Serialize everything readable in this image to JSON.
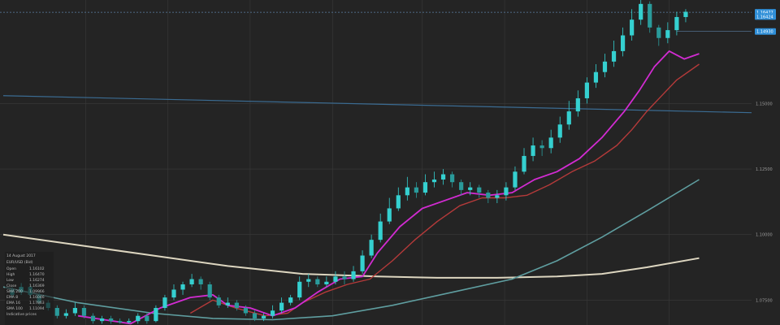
{
  "chart_data": {
    "type": "candlestick",
    "title": "",
    "xlabel": "",
    "ylabel": "",
    "ylim": [
      1.0655,
      1.1895
    ],
    "y_ticks": [
      "1.15000",
      "1.12500",
      "1.10000",
      "1.07500"
    ],
    "y_tick_values": [
      1.15,
      1.125,
      1.1,
      1.075
    ],
    "price_tags": [
      {
        "label": "1.16477",
        "value": 1.1848,
        "color": "#2f8fd8"
      },
      {
        "label": "1.16424",
        "value": 1.1832,
        "color": "#2f8fd8"
      },
      {
        "label": "1.14930",
        "value": 1.1775,
        "color": "#2f8fd8"
      }
    ],
    "trendline": {
      "start": [
        0,
        1.153
      ],
      "end": [
        1,
        1.1465
      ]
    },
    "info_panel": {
      "date": "14 August 2017",
      "instrument": "EUR/USD (Bid)",
      "rows": [
        {
          "label": "Open",
          "value": "1.16102"
        },
        {
          "label": "High",
          "value": "1.16470"
        },
        {
          "label": "Low",
          "value": "1.16274"
        },
        {
          "label": "Close",
          "value": "1.16369"
        },
        {
          "label": "SMA 200",
          "value": "1.09966"
        },
        {
          "label": "EMA 8",
          "value": "1.16046"
        },
        {
          "label": "EMA 16",
          "value": "1.17863"
        },
        {
          "label": "SMA 100",
          "value": "1.11094"
        },
        {
          "label": "Indicative prices",
          "value": ""
        }
      ]
    },
    "series": [
      {
        "name": "EMA 8",
        "color": "#d22bd2",
        "width": 1.8,
        "values": [
          [
            0.1,
            1.069
          ],
          [
            0.17,
            1.066
          ],
          [
            0.21,
            1.072
          ],
          [
            0.25,
            1.076
          ],
          [
            0.28,
            1.077
          ],
          [
            0.3,
            1.073
          ],
          [
            0.33,
            1.072
          ],
          [
            0.36,
            1.069
          ],
          [
            0.39,
            1.072
          ],
          [
            0.42,
            1.078
          ],
          [
            0.45,
            1.083
          ],
          [
            0.48,
            1.084
          ],
          [
            0.5,
            1.093
          ],
          [
            0.53,
            1.103
          ],
          [
            0.56,
            1.11
          ],
          [
            0.59,
            1.113
          ],
          [
            0.62,
            1.116
          ],
          [
            0.65,
            1.115
          ],
          [
            0.68,
            1.116
          ],
          [
            0.71,
            1.121
          ],
          [
            0.74,
            1.124
          ],
          [
            0.77,
            1.129
          ],
          [
            0.8,
            1.137
          ],
          [
            0.83,
            1.147
          ],
          [
            0.85,
            1.155
          ],
          [
            0.87,
            1.164
          ],
          [
            0.89,
            1.17
          ],
          [
            0.91,
            1.167
          ],
          [
            0.93,
            1.169
          ]
        ]
      },
      {
        "name": "EMA 16",
        "color": "#b53a3a",
        "width": 1.4,
        "values": [
          [
            0.25,
            1.07
          ],
          [
            0.28,
            1.075
          ],
          [
            0.31,
            1.072
          ],
          [
            0.35,
            1.069
          ],
          [
            0.38,
            1.07
          ],
          [
            0.4,
            1.074
          ],
          [
            0.43,
            1.078
          ],
          [
            0.46,
            1.081
          ],
          [
            0.49,
            1.083
          ],
          [
            0.52,
            1.09
          ],
          [
            0.55,
            1.098
          ],
          [
            0.58,
            1.105
          ],
          [
            0.61,
            1.111
          ],
          [
            0.64,
            1.114
          ],
          [
            0.67,
            1.114
          ],
          [
            0.7,
            1.115
          ],
          [
            0.73,
            1.119
          ],
          [
            0.76,
            1.124
          ],
          [
            0.79,
            1.128
          ],
          [
            0.82,
            1.134
          ],
          [
            0.84,
            1.14
          ],
          [
            0.86,
            1.147
          ],
          [
            0.88,
            1.153
          ],
          [
            0.9,
            1.159
          ],
          [
            0.93,
            1.165
          ]
        ]
      },
      {
        "name": "SMA 100",
        "color": "#5f9ea0",
        "width": 1.6,
        "values": [
          [
            0.0,
            1.08
          ],
          [
            0.1,
            1.074
          ],
          [
            0.2,
            1.07
          ],
          [
            0.28,
            1.068
          ],
          [
            0.36,
            1.0675
          ],
          [
            0.44,
            1.069
          ],
          [
            0.52,
            1.073
          ],
          [
            0.6,
            1.078
          ],
          [
            0.68,
            1.083
          ],
          [
            0.74,
            1.09
          ],
          [
            0.8,
            1.099
          ],
          [
            0.86,
            1.109
          ],
          [
            0.93,
            1.121
          ]
        ]
      },
      {
        "name": "SMA 200",
        "color": "#ddd6c0",
        "width": 2.0,
        "values": [
          [
            0.0,
            1.1
          ],
          [
            0.1,
            1.096
          ],
          [
            0.2,
            1.092
          ],
          [
            0.3,
            1.088
          ],
          [
            0.4,
            1.085
          ],
          [
            0.5,
            1.084
          ],
          [
            0.58,
            1.0835
          ],
          [
            0.66,
            1.0835
          ],
          [
            0.74,
            1.084
          ],
          [
            0.8,
            1.085
          ],
          [
            0.86,
            1.0875
          ],
          [
            0.93,
            1.091
          ]
        ]
      }
    ],
    "candles": [
      [
        0.012,
        1.079,
        1.077,
        1.08,
        1.076
      ],
      [
        0.024,
        1.078,
        1.08,
        1.0815,
        1.077
      ],
      [
        0.036,
        1.08,
        1.077,
        1.081,
        1.076
      ],
      [
        0.048,
        1.077,
        1.074,
        1.0785,
        1.073
      ],
      [
        0.06,
        1.074,
        1.072,
        1.075,
        1.071
      ],
      [
        0.072,
        1.072,
        1.069,
        1.073,
        1.068
      ],
      [
        0.084,
        1.069,
        1.07,
        1.0715,
        1.068
      ],
      [
        0.096,
        1.07,
        1.072,
        1.074,
        1.069
      ],
      [
        0.108,
        1.072,
        1.069,
        1.073,
        1.068
      ],
      [
        0.12,
        1.069,
        1.067,
        1.07,
        1.066
      ],
      [
        0.132,
        1.067,
        1.068,
        1.069,
        1.066
      ],
      [
        0.144,
        1.068,
        1.067,
        1.069,
        1.066
      ],
      [
        0.156,
        1.067,
        1.0665,
        1.068,
        1.066
      ],
      [
        0.168,
        1.0665,
        1.067,
        1.068,
        1.066
      ],
      [
        0.18,
        1.067,
        1.069,
        1.07,
        1.066
      ],
      [
        0.192,
        1.069,
        1.067,
        1.07,
        1.066
      ],
      [
        0.204,
        1.067,
        1.072,
        1.073,
        1.0665
      ],
      [
        0.216,
        1.072,
        1.076,
        1.077,
        1.071
      ],
      [
        0.228,
        1.076,
        1.079,
        1.081,
        1.075
      ],
      [
        0.24,
        1.079,
        1.081,
        1.082,
        1.077
      ],
      [
        0.252,
        1.081,
        1.083,
        1.085,
        1.08
      ],
      [
        0.264,
        1.083,
        1.081,
        1.084,
        1.079
      ],
      [
        0.276,
        1.081,
        1.076,
        1.082,
        1.075
      ],
      [
        0.288,
        1.076,
        1.073,
        1.077,
        1.072
      ],
      [
        0.3,
        1.073,
        1.074,
        1.076,
        1.072
      ],
      [
        0.312,
        1.074,
        1.072,
        1.075,
        1.071
      ],
      [
        0.324,
        1.072,
        1.07,
        1.073,
        1.069
      ],
      [
        0.336,
        1.07,
        1.068,
        1.071,
        1.067
      ],
      [
        0.348,
        1.068,
        1.069,
        1.07,
        1.067
      ],
      [
        0.36,
        1.069,
        1.071,
        1.073,
        1.068
      ],
      [
        0.372,
        1.071,
        1.074,
        1.076,
        1.07
      ],
      [
        0.384,
        1.074,
        1.076,
        1.077,
        1.073
      ],
      [
        0.396,
        1.076,
        1.082,
        1.084,
        1.075
      ],
      [
        0.408,
        1.082,
        1.083,
        1.085,
        1.08
      ],
      [
        0.42,
        1.083,
        1.081,
        1.084,
        1.08
      ],
      [
        0.432,
        1.081,
        1.082,
        1.084,
        1.08
      ],
      [
        0.444,
        1.082,
        1.084,
        1.086,
        1.081
      ],
      [
        0.456,
        1.084,
        1.083,
        1.086,
        1.081
      ],
      [
        0.468,
        1.083,
        1.086,
        1.088,
        1.082
      ],
      [
        0.48,
        1.086,
        1.092,
        1.094,
        1.085
      ],
      [
        0.492,
        1.092,
        1.098,
        1.1,
        1.091
      ],
      [
        0.504,
        1.098,
        1.105,
        1.108,
        1.097
      ],
      [
        0.516,
        1.105,
        1.11,
        1.114,
        1.104
      ],
      [
        0.528,
        1.11,
        1.115,
        1.118,
        1.109
      ],
      [
        0.54,
        1.115,
        1.118,
        1.122,
        1.113
      ],
      [
        0.552,
        1.118,
        1.116,
        1.12,
        1.114
      ],
      [
        0.564,
        1.116,
        1.12,
        1.123,
        1.115
      ],
      [
        0.576,
        1.12,
        1.121,
        1.124,
        1.118
      ],
      [
        0.588,
        1.121,
        1.123,
        1.125,
        1.119
      ],
      [
        0.6,
        1.123,
        1.12,
        1.124,
        1.118
      ],
      [
        0.612,
        1.12,
        1.117,
        1.121,
        1.115
      ],
      [
        0.624,
        1.117,
        1.118,
        1.12,
        1.115
      ],
      [
        0.636,
        1.118,
        1.116,
        1.119,
        1.114
      ],
      [
        0.648,
        1.116,
        1.114,
        1.117,
        1.112
      ],
      [
        0.66,
        1.114,
        1.115,
        1.117,
        1.112
      ],
      [
        0.672,
        1.115,
        1.118,
        1.12,
        1.113
      ],
      [
        0.684,
        1.118,
        1.124,
        1.126,
        1.117
      ],
      [
        0.696,
        1.124,
        1.13,
        1.133,
        1.123
      ],
      [
        0.708,
        1.13,
        1.134,
        1.137,
        1.128
      ],
      [
        0.72,
        1.134,
        1.133,
        1.136,
        1.13
      ],
      [
        0.732,
        1.133,
        1.137,
        1.14,
        1.131
      ],
      [
        0.744,
        1.137,
        1.142,
        1.145,
        1.135
      ],
      [
        0.756,
        1.142,
        1.147,
        1.151,
        1.14
      ],
      [
        0.768,
        1.147,
        1.152,
        1.155,
        1.145
      ],
      [
        0.78,
        1.152,
        1.158,
        1.16,
        1.15
      ],
      [
        0.792,
        1.158,
        1.162,
        1.165,
        1.156
      ],
      [
        0.804,
        1.162,
        1.166,
        1.169,
        1.16
      ],
      [
        0.816,
        1.166,
        1.17,
        1.174,
        1.164
      ],
      [
        0.828,
        1.17,
        1.176,
        1.179,
        1.168
      ],
      [
        0.84,
        1.176,
        1.182,
        1.186,
        1.174
      ],
      [
        0.852,
        1.182,
        1.188,
        1.1895,
        1.18
      ],
      [
        0.864,
        1.188,
        1.179,
        1.189,
        1.177
      ],
      [
        0.876,
        1.179,
        1.175,
        1.18,
        1.172
      ],
      [
        0.888,
        1.175,
        1.178,
        1.181,
        1.173
      ],
      [
        0.9,
        1.178,
        1.183,
        1.185,
        1.176
      ],
      [
        0.912,
        1.183,
        1.185,
        1.186,
        1.181
      ]
    ]
  },
  "colors": {
    "background": "#242424",
    "grid": "#3a3a3a",
    "bull": "#35d0d0",
    "bear": "#2a9b9b",
    "trendline": "#3b6c93",
    "dotted": "#5a7fa4"
  }
}
